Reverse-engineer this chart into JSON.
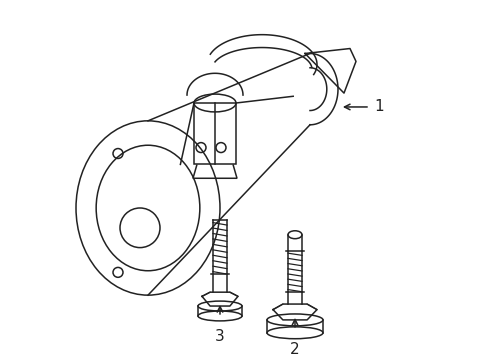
{
  "background_color": "#ffffff",
  "line_color": "#222222",
  "line_width": 1.1,
  "label_fontsize": 10,
  "fig_width": 4.89,
  "fig_height": 3.6,
  "dpi": 100
}
